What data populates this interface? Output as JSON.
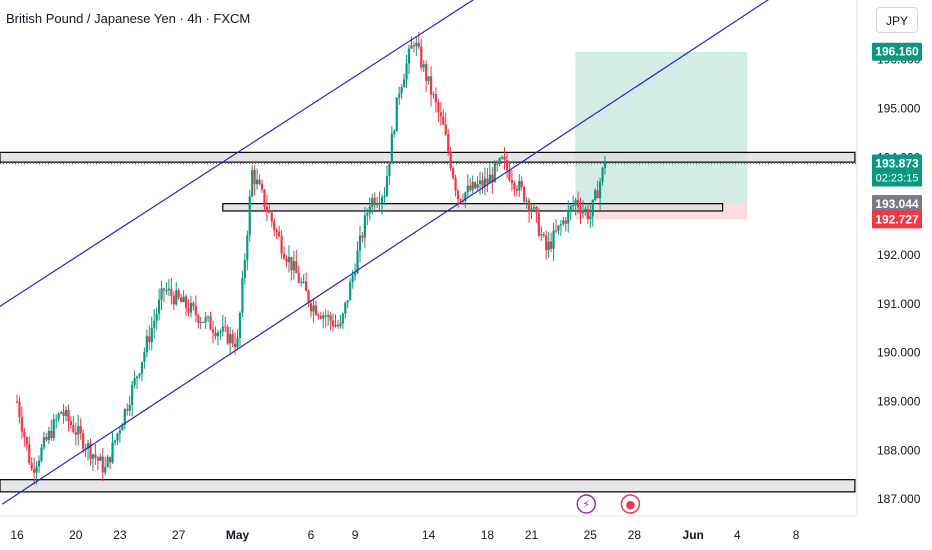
{
  "header": {
    "title": "British Pound / Japanese Yen · 4h · FXCM",
    "currency": "JPY"
  },
  "price_labels": [
    {
      "name": "target-price-label",
      "value": "196.160",
      "price": 196.16,
      "bg": "#089981",
      "fg": "#ffffff"
    },
    {
      "name": "current-price-label",
      "value": "193.873",
      "price": 193.873,
      "bg": "#089981",
      "fg": "#ffffff",
      "sub": "02:23:15"
    },
    {
      "name": "entry-price-label",
      "value": "193.044",
      "price": 193.044,
      "bg": "#787b86",
      "fg": "#ffffff"
    },
    {
      "name": "stop-price-label",
      "value": "192.727",
      "price": 192.727,
      "bg": "#f23645",
      "fg": "#ffffff"
    }
  ],
  "event_markers": [
    {
      "name": "lightning-icon",
      "date_label": "25",
      "symbol": "⚡",
      "color": "#9c27b0"
    },
    {
      "name": "record-icon",
      "date_label": "28",
      "symbol": "●",
      "color": "#f23645"
    }
  ],
  "colors": {
    "up": "#089981",
    "down": "#f23645",
    "channel": "#2323d6",
    "target_zone": "#cde9e2",
    "stop_zone": "#fbd6d9"
  },
  "chart_data": {
    "type": "candlestick",
    "title": "British Pound / Japanese Yen · 4h · FXCM",
    "ylim": [
      186.75,
      197.0
    ],
    "y_ticks": [
      187.0,
      188.0,
      189.0,
      190.0,
      191.0,
      192.0,
      193.0,
      194.0,
      195.0,
      196.0
    ],
    "y_tick_labels": [
      "187.000",
      "188.000",
      "189.000",
      "190.000",
      "191.000",
      "192.000",
      "193.000",
      "194.000",
      "195.000",
      "196.000"
    ],
    "x_tick_labels": [
      "16",
      "20",
      "23",
      "27",
      "May",
      "6",
      "9",
      "14",
      "18",
      "21",
      "25",
      "28",
      "Jun",
      "4",
      "8"
    ],
    "x_tick_dates": [
      "Apr 16",
      "Apr 20",
      "Apr 23",
      "Apr 27",
      "May 1",
      "May 6",
      "May 9",
      "May 14",
      "May 18",
      "May 21",
      "May 25",
      "May 28",
      "Jun 1",
      "Jun 4",
      "Jun 8"
    ],
    "key_points": [
      {
        "date": "Apr 16",
        "price": 189.0
      },
      {
        "date": "Apr 17",
        "price": 187.6
      },
      {
        "date": "Apr 19",
        "price": 188.8
      },
      {
        "date": "Apr 22",
        "price": 187.6
      },
      {
        "date": "Apr 24",
        "price": 189.4
      },
      {
        "date": "Apr 26",
        "price": 191.3
      },
      {
        "date": "Apr 29",
        "price": 190.6
      },
      {
        "date": "May 1",
        "price": 190.2
      },
      {
        "date": "May 2",
        "price": 193.7
      },
      {
        "date": "May 4",
        "price": 192.2
      },
      {
        "date": "May 6",
        "price": 191.0
      },
      {
        "date": "May 8",
        "price": 190.5
      },
      {
        "date": "May 10",
        "price": 193.1
      },
      {
        "date": "May 11",
        "price": 193.3
      },
      {
        "date": "May 12",
        "price": 195.4
      },
      {
        "date": "May 13",
        "price": 196.4
      },
      {
        "date": "May 15",
        "price": 194.6
      },
      {
        "date": "May 16",
        "price": 193.2
      },
      {
        "date": "May 18",
        "price": 193.5
      },
      {
        "date": "May 19",
        "price": 193.9
      },
      {
        "date": "May 21",
        "price": 193.0
      },
      {
        "date": "May 22",
        "price": 192.1
      },
      {
        "date": "May 24",
        "price": 193.1
      },
      {
        "date": "May 25",
        "price": 192.8
      },
      {
        "date": "May 26",
        "price": 193.87
      }
    ],
    "channel_lines": [
      {
        "name": "channel-upper",
        "from": {
          "date": "Apr 11",
          "price": 190.2
        },
        "to": {
          "date": "May 20",
          "price": 197.8
        }
      },
      {
        "name": "channel-lower",
        "from": {
          "date": "Apr 15",
          "price": 186.9
        },
        "to": {
          "date": "Jun 8",
          "price": 197.6
        }
      }
    ],
    "zones": [
      {
        "name": "resistance-zone",
        "from": "Apr 11",
        "to": "Jun 12",
        "top": 194.1,
        "bottom": 193.9,
        "fill": "#dcdcdc"
      },
      {
        "name": "mid-support-zone",
        "from": "Apr 30",
        "to": "Jun 3",
        "top": 193.05,
        "bottom": 192.9,
        "fill": "#dcdcdc"
      },
      {
        "name": "low-support-zone",
        "from": "Apr 11",
        "to": "Jun 12",
        "top": 187.4,
        "bottom": 187.15,
        "fill": "#dcdcdc"
      }
    ],
    "position": {
      "entry": 193.044,
      "target": 196.16,
      "stop": 192.727,
      "from": "May 25",
      "to": "Jun 4"
    },
    "current_price": 193.873,
    "countdown": "02:23:15"
  }
}
